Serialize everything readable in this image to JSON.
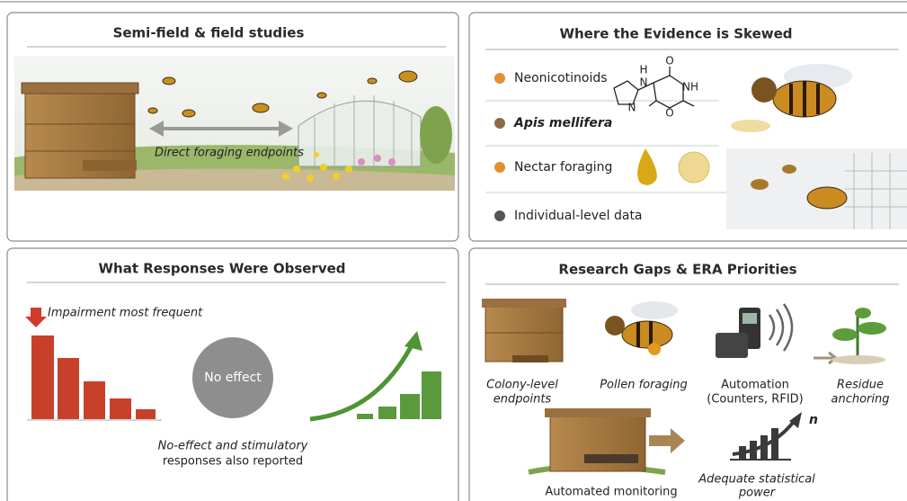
{
  "panels": [
    {
      "title": "Semi-field & field studies",
      "label": "Direct foraging endpoints"
    },
    {
      "title": "Where the Evidence is Skewed",
      "items": [
        "Neonicotinoids",
        "Apis mellifera",
        "Nectar foraging",
        "Individual-level data"
      ],
      "molecule_atoms": [
        "H",
        "N",
        "O",
        "NH",
        "N",
        "O"
      ]
    },
    {
      "title": "What Responses Were Observed",
      "callout": "Impairment most frequent",
      "circle_label": "No effect",
      "caption": [
        "No-effect and stimulatory",
        "responses also reported"
      ]
    },
    {
      "title": "Research Gaps & ERA Priorities",
      "items": [
        {
          "lines": [
            "Colony-level",
            "endpoints"
          ]
        },
        {
          "lines": [
            "Pollen foraging"
          ]
        },
        {
          "lines": [
            "Automation",
            "(Counters, RFID)"
          ]
        },
        {
          "lines": [
            "Residue",
            "anchoring"
          ]
        },
        {
          "lines": [
            "Automated monitoring"
          ]
        },
        {
          "lines": [
            "Adequate statistical",
            "power"
          ]
        }
      ],
      "exponent": "n"
    }
  ]
}
